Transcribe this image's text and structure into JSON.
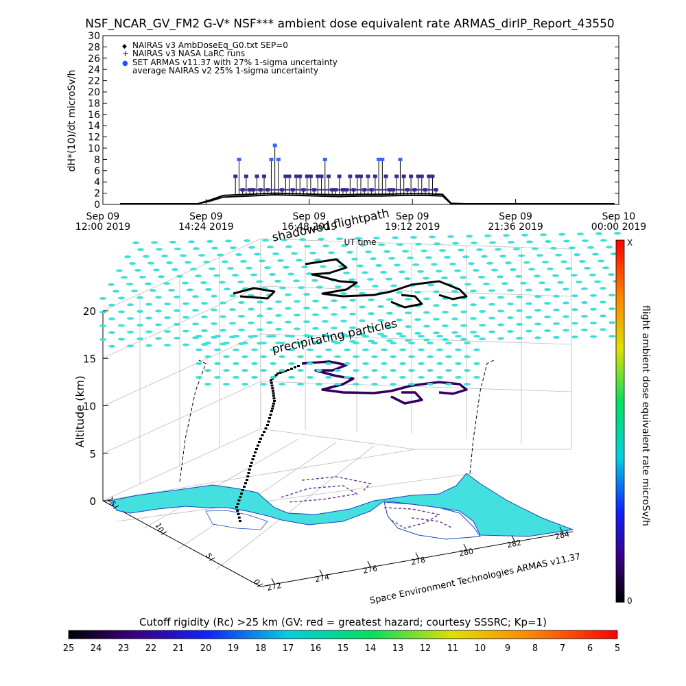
{
  "colors": {
    "ocean": "#44e0e0",
    "ocean_dots": "#3ee0d6",
    "nairas_v3": "#000000",
    "armas": "#3a2a8c",
    "armas_high": "#2a6cff",
    "track": "#200040"
  },
  "top_chart": {
    "title": "NSF_NCAR_GV_FM2 G-V* NSF*** ambient dose equivalent rate ARMAS_dirIP_Report_43550",
    "ylabel": "dH*(10)/dt microSv/h",
    "xlabel": "UT time",
    "legend": [
      {
        "symbol": "◆",
        "text": "NAIRAS v3 AmbDoseEq_G0.txt SEP=0"
      },
      {
        "symbol": "+",
        "text": "NAIRAS v3 NASA LaRC runs"
      },
      {
        "symbol": "●",
        "text": "SET ARMAS v11.37 with 27% 1-sigma uncertainty"
      },
      {
        "symbol": "",
        "text": "average NAIRAS v2 25% 1-sigma uncertainty"
      }
    ],
    "xticks": [
      {
        "top": "Sep 09",
        "bottom": "12:00 2019"
      },
      {
        "top": "Sep 09",
        "bottom": "14:24 2019"
      },
      {
        "top": "Sep 09",
        "bottom": "16:48 2019"
      },
      {
        "top": "Sep 09",
        "bottom": "19:12 2019"
      },
      {
        "top": "Sep 09",
        "bottom": "21:36 2019"
      },
      {
        "top": "Sep 10",
        "bottom": "00:00 2019"
      }
    ]
  },
  "chart_data": [
    {
      "type": "scatter",
      "title": "NSF_NCAR_GV_FM2 G-V* NSF*** ambient dose equivalent rate ARMAS_dirIP_Report_43550",
      "xlabel": "UT time",
      "ylabel": "dH*(10)/dt microSv/h",
      "xlim": [
        "2019-09-09 12:00",
        "2019-09-10 00:00"
      ],
      "ylim": [
        0,
        30
      ],
      "yticks": [
        0,
        2,
        4,
        6,
        8,
        10,
        12,
        14,
        16,
        18,
        20,
        22,
        24,
        26,
        28,
        30
      ],
      "legend_position": "top-left",
      "series": [
        {
          "name": "NAIRAS v3 AmbDoseEq_G0.txt SEP=0",
          "x": [
            "12:24",
            "13:00",
            "13:36",
            "14:12",
            "14:30",
            "14:48",
            "15:06",
            "15:24",
            "15:42",
            "16:00",
            "16:30",
            "17:00",
            "17:30",
            "18:00",
            "18:30",
            "19:00",
            "19:30",
            "19:54",
            "20:06",
            "20:30",
            "21:00",
            "21:30",
            "22:00",
            "22:30",
            "23:00",
            "23:30",
            "23:54"
          ],
          "y": [
            0.1,
            0.1,
            0.1,
            0.1,
            0.8,
            1.6,
            1.7,
            1.8,
            1.9,
            2.0,
            1.9,
            1.8,
            1.7,
            1.8,
            1.8,
            1.9,
            1.9,
            1.8,
            0.2,
            0.1,
            0.1,
            0.1,
            0.1,
            0.1,
            0.1,
            0.1,
            0.1
          ]
        },
        {
          "name": "NAIRAS v3 NASA LaRC runs",
          "x": [
            "12:24",
            "13:00",
            "13:36",
            "14:12",
            "14:30",
            "14:48",
            "15:06",
            "15:24",
            "15:42",
            "16:00",
            "16:30",
            "17:00",
            "17:30",
            "18:00",
            "18:30",
            "19:00",
            "19:30",
            "19:54",
            "20:06",
            "20:30",
            "21:00",
            "21:30",
            "22:00",
            "22:30",
            "23:00",
            "23:30",
            "23:54"
          ],
          "y": [
            0.1,
            0.1,
            0.1,
            0.1,
            0.6,
            1.3,
            1.4,
            1.5,
            1.6,
            1.7,
            1.6,
            1.5,
            1.4,
            1.5,
            1.5,
            1.6,
            1.6,
            1.5,
            0.1,
            0.1,
            0.1,
            0.1,
            0.1,
            0.1,
            0.1,
            0.1,
            0.1
          ]
        },
        {
          "name": "SET ARMAS v11.37 with 27% 1-sigma uncertainty",
          "x": [
            "15:05",
            "15:10",
            "15:15",
            "15:20",
            "15:25",
            "15:30",
            "15:35",
            "15:40",
            "15:45",
            "15:50",
            "15:55",
            "16:00",
            "16:05",
            "16:10",
            "16:15",
            "16:20",
            "16:25",
            "16:30",
            "16:35",
            "16:40",
            "16:45",
            "16:50",
            "16:55",
            "17:00",
            "17:05",
            "17:10",
            "17:15",
            "17:20",
            "17:25",
            "17:30",
            "17:35",
            "17:40",
            "17:45",
            "17:50",
            "17:55",
            "18:00",
            "18:05",
            "18:10",
            "18:15",
            "18:20",
            "18:25",
            "18:30",
            "18:35",
            "18:40",
            "18:45",
            "18:50",
            "18:55",
            "19:00",
            "19:05",
            "19:10",
            "19:15",
            "19:20",
            "19:25",
            "19:30",
            "19:35",
            "19:40",
            "19:45"
          ],
          "y": [
            5,
            8,
            2.6,
            5,
            2.6,
            2.6,
            5,
            2.6,
            5,
            2.6,
            8,
            10.5,
            8,
            2.6,
            5,
            5,
            2.6,
            5,
            5,
            2.6,
            5,
            5,
            2.6,
            5,
            5,
            8,
            5,
            2.6,
            2.6,
            5,
            2.6,
            2.6,
            5,
            2.6,
            5,
            5,
            2.6,
            5,
            2.6,
            5,
            8,
            8,
            5,
            2.6,
            2.6,
            5,
            8,
            5,
            2.6,
            5,
            2.6,
            5,
            5,
            2.6,
            5,
            5,
            2.6
          ]
        }
      ]
    },
    {
      "type": "scatter",
      "title": "shadowed flightpath",
      "xlabel": "Space Environment Technologies ARMAS v11.37",
      "ylabel": "Altitude (km)",
      "zlim": [
        0,
        20
      ],
      "zticks": [
        0,
        5,
        10,
        15,
        20
      ],
      "longitude_ticks": [
        272,
        274,
        276,
        278,
        280,
        282,
        284
      ],
      "latitude_ticks": [
        0,
        5,
        10,
        15
      ],
      "annotations": [
        "shadowed flightpath",
        "precipitating particles"
      ],
      "colorbar_right": {
        "label": "flight ambient dose equivalent rate microSv/h",
        "min_label": "0",
        "max_label": "X"
      }
    }
  ],
  "bottom_colorbar": {
    "title": "Cutoff rigidity (Rc) >25 km (GV: red = greatest hazard; courtesy SSSRC; Kp=1)",
    "ticks": [
      "25",
      "24",
      "23",
      "22",
      "21",
      "20",
      "19",
      "18",
      "17",
      "16",
      "15",
      "14",
      "13",
      "12",
      "11",
      "10",
      "9",
      "8",
      "7",
      "6",
      "5"
    ]
  },
  "plot3d": {
    "annotation_flightpath": "shadowed flightpath",
    "annotation_particles": "precipitating particles",
    "zlabel": "Altitude (km)",
    "zticks": [
      "0",
      "5",
      "10",
      "15",
      "20"
    ],
    "lon_ticks": [
      "272",
      "274",
      "276",
      "278",
      "280",
      "282",
      "284"
    ],
    "lat_ticks": [
      "0",
      "5",
      "10",
      "15"
    ],
    "footer": "Space Environment Technologies ARMAS v11.37",
    "right_colorbar_label": "flight ambient dose equivalent rate microSv/h",
    "right_colorbar_max": "X",
    "right_colorbar_min": "0"
  }
}
